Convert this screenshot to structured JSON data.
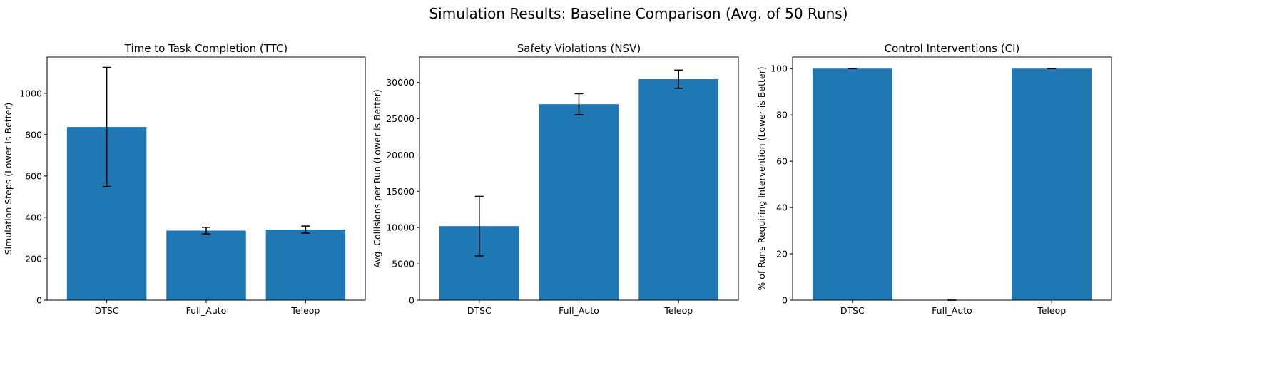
{
  "figure": {
    "title": "Simulation Results: Baseline Comparison (Avg. of 50 Runs)",
    "bar_color": "#1f77b4",
    "errorbar_color": "#000000"
  },
  "chart_data": [
    {
      "type": "bar",
      "title": "Time to Task Completion (TTC)",
      "xlabel": "",
      "ylabel": "Simulation Steps (Lower is Better)",
      "categories": [
        "DTSC",
        "Full_Auto",
        "Teleop"
      ],
      "values": [
        837,
        336,
        341
      ],
      "errors": [
        288,
        16,
        17
      ],
      "ylim": [
        0,
        1175
      ],
      "yticks": [
        0,
        200,
        400,
        600,
        800,
        1000
      ],
      "grid": false
    },
    {
      "type": "bar",
      "title": "Safety Violations (NSV)",
      "xlabel": "",
      "ylabel": "Avg. Collisions per Run (Lower is Better)",
      "categories": [
        "DTSC",
        "Full_Auto",
        "Teleop"
      ],
      "values": [
        10200,
        27000,
        30450
      ],
      "errors": [
        4100,
        1450,
        1250
      ],
      "ylim": [
        0,
        33500
      ],
      "yticks": [
        0,
        5000,
        10000,
        15000,
        20000,
        25000,
        30000
      ],
      "grid": false
    },
    {
      "type": "bar",
      "title": "Control Interventions (CI)",
      "xlabel": "",
      "ylabel": "% of Runs Requiring Intervention (Lower is Better)",
      "categories": [
        "DTSC",
        "Full_Auto",
        "Teleop"
      ],
      "values": [
        100,
        0,
        100
      ],
      "errors": [
        0,
        0,
        0
      ],
      "ylim": [
        0,
        105
      ],
      "yticks": [
        0,
        20,
        40,
        60,
        80,
        100
      ],
      "grid": false
    }
  ]
}
